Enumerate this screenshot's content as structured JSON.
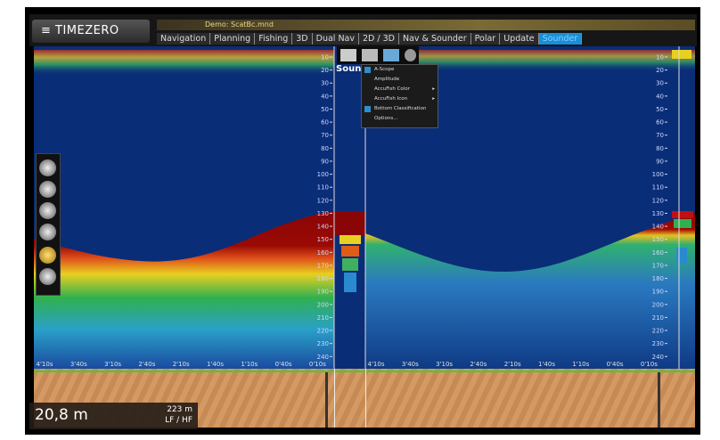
{
  "app": {
    "logo": "TIMEZERO",
    "document": "Demo: ScatBc.mnd"
  },
  "tabs": [
    "Navigation",
    "Planning",
    "Fishing",
    "3D",
    "Dual Nav",
    "2D / 3D",
    "Nav & Sounder",
    "Polar",
    "Update",
    "Sounder"
  ],
  "sounder": {
    "panel_label": "Sounder",
    "lf_depth_labels": [
      10,
      20,
      30,
      40,
      50,
      60,
      70,
      80,
      90,
      100,
      110,
      120,
      130,
      140,
      150,
      160,
      170,
      180,
      190,
      200,
      210,
      220,
      230,
      240
    ],
    "hf_depth_labels": [
      10,
      20,
      30,
      40,
      50,
      60,
      70,
      80,
      90,
      100,
      110,
      120,
      130,
      140,
      150,
      160,
      170,
      180,
      190,
      200,
      210,
      220,
      230,
      240
    ],
    "lf_time_labels": [
      "4'10s",
      "3'40s",
      "3'10s",
      "2'40s",
      "2'10s",
      "1'40s",
      "1'10s",
      "0'40s",
      "0'10s"
    ],
    "hf_time_labels": [
      "4'10s",
      "3'40s",
      "3'10s",
      "2'40s",
      "2'10s",
      "1'40s",
      "1'10s",
      "0'40s",
      "0'10s"
    ]
  },
  "menu": [
    "A-Scope",
    "Amplitude",
    "AccuFish Color",
    "AccuFish Icon",
    "Bottom Classification",
    "Options..."
  ],
  "info": {
    "depth": "20,8 m",
    "range": "223 m",
    "frequency": "LF / HF"
  }
}
